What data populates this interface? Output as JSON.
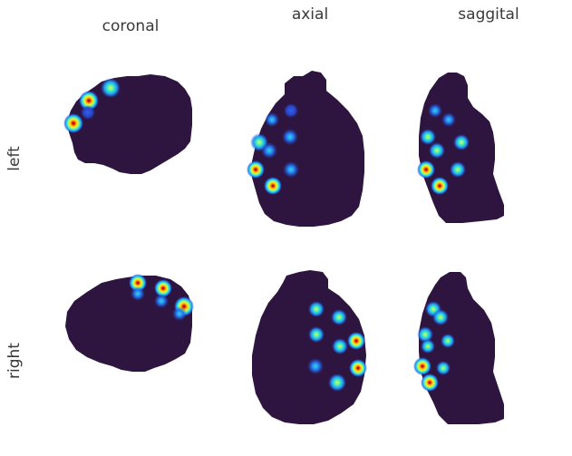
{
  "columns": {
    "coronal": "coronal",
    "axial": "axial",
    "saggital": "saggital"
  },
  "rows": {
    "left": "left",
    "right": "right"
  },
  "colors": {
    "brain": "#2d1540",
    "spot_colormap": "jet",
    "background": "#ffffff"
  }
}
